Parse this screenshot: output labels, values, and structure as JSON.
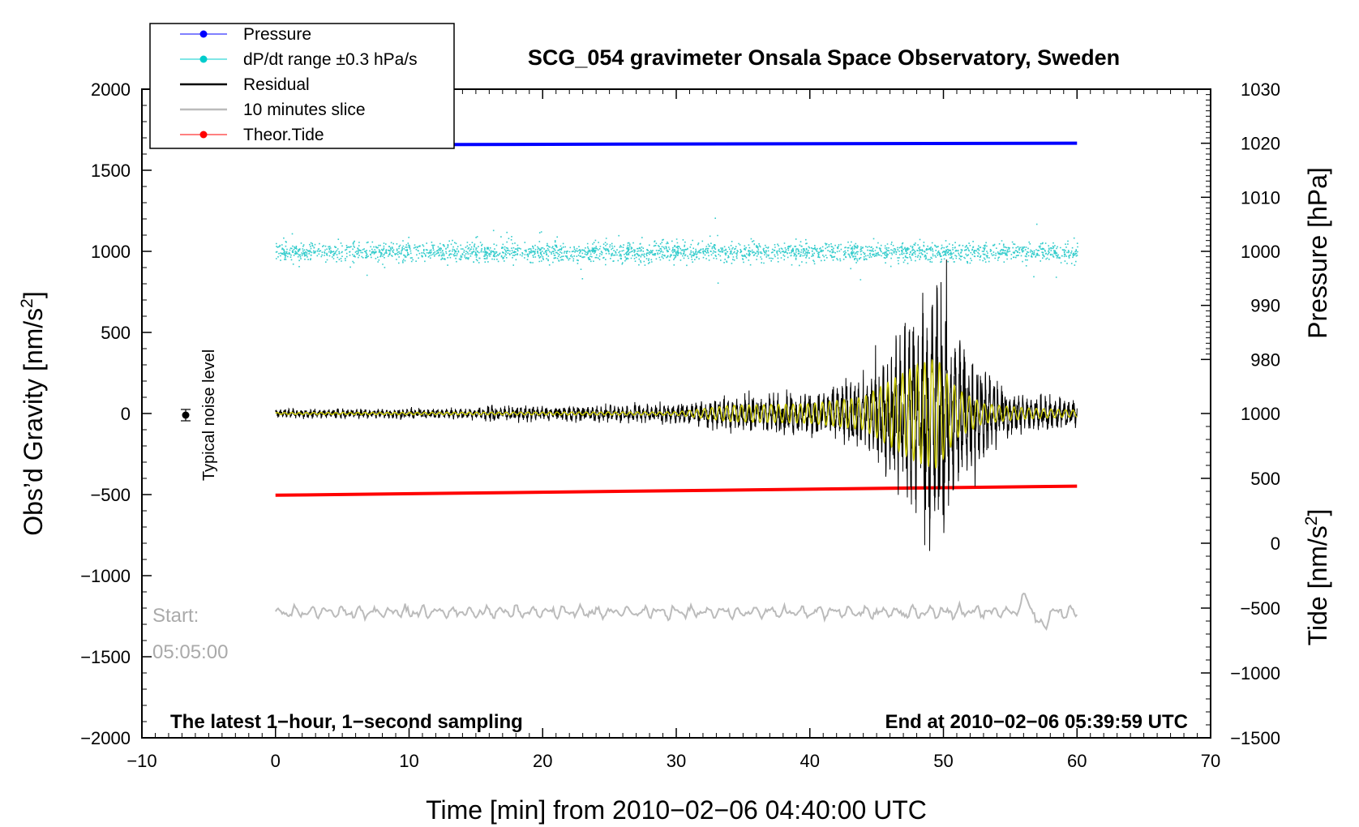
{
  "chart_data": {
    "type": "line",
    "title": "SCG_054 gravimeter Onsala Space Observatory, Sweden",
    "xlabel": "Time [min] from 2010−02−06 04:40:00 UTC",
    "xlim": [
      -10,
      70
    ],
    "x_ticks": [
      -10,
      0,
      10,
      20,
      30,
      40,
      50,
      60,
      70
    ],
    "x_tick_labels": [
      "−10",
      "0",
      "10",
      "20",
      "30",
      "40",
      "50",
      "60",
      "70"
    ],
    "left_axis": {
      "label": "Obs’d Gravity [nm/s2]",
      "label_main": "Obs’d Gravity [nm/s",
      "label_sup": "2",
      "label_end": "]",
      "ylim": [
        -2000,
        2000
      ],
      "ticks": [
        2000,
        1500,
        1000,
        500,
        0,
        -500,
        -1000,
        -1500,
        -2000
      ],
      "tick_labels": [
        "2000",
        "1500",
        "1000",
        "500",
        "0",
        "−500",
        "−1000",
        "−1500",
        "−2000"
      ]
    },
    "pressure_axis": {
      "label": "Pressure [hPa]",
      "ylim": [
        970,
        1030
      ],
      "ticks": [
        1030,
        1020,
        1010,
        1000,
        990,
        980
      ],
      "tick_labels": [
        "1030",
        "1020",
        "1010",
        "1000",
        "990",
        "980"
      ]
    },
    "tide_axis": {
      "label": "Tide [nm/s2]",
      "label_main": "Tide [nm/s",
      "label_sup": "2",
      "label_end": "]",
      "ylim": [
        -1500,
        1000
      ],
      "ticks": [
        1000,
        500,
        0,
        -500,
        -1000,
        -1500
      ],
      "tick_labels": [
        "1000",
        "500",
        "0",
        "−500",
        "−1000",
        "−1500"
      ]
    },
    "legend": [
      {
        "label": "Pressure",
        "color": "#0000ff",
        "marker": true
      },
      {
        "label": "dP/dt range ±0.3 hPa/s",
        "color": "#00cccc",
        "marker": true
      },
      {
        "label": "Residual",
        "color": "#000000",
        "marker": false
      },
      {
        "label": "10 minutes slice",
        "color": "#bbbbbb",
        "marker": false
      },
      {
        "label": "Theor.Tide",
        "color": "#ff0000",
        "marker": true
      }
    ],
    "series": [
      {
        "name": "Pressure",
        "color": "#0000ff",
        "axis": "pressure",
        "x": [
          0,
          60
        ],
        "values": [
          1019.7,
          1020.0
        ]
      },
      {
        "name": "dP/dt range ±0.3 hPa/s",
        "color": "#33cccc",
        "axis": "left",
        "center": 1000,
        "spread": 40,
        "x": [
          0,
          60
        ]
      },
      {
        "name": "Residual",
        "color": "#000000",
        "axis": "left",
        "envelope_x": [
          0,
          15,
          16.5,
          17,
          25,
          31,
          34,
          40,
          44,
          46,
          48,
          49.5,
          51,
          53,
          55,
          60
        ],
        "envelope_y": [
          25,
          30,
          50,
          40,
          45,
          60,
          100,
          120,
          200,
          350,
          620,
          780,
          500,
          260,
          130,
          80
        ]
      },
      {
        "name": "Filtered",
        "color": "#cccc00",
        "axis": "left",
        "envelope_x": [
          0,
          30,
          34,
          40,
          44,
          46,
          48,
          49.5,
          51,
          53,
          56,
          60
        ],
        "envelope_y": [
          6,
          10,
          50,
          60,
          100,
          200,
          300,
          340,
          150,
          60,
          35,
          20
        ]
      },
      {
        "name": "Theor.Tide",
        "color": "#ff0000",
        "axis": "tide",
        "x": [
          0,
          60
        ],
        "values": [
          370,
          440
        ]
      },
      {
        "name": "10 minutes slice",
        "color": "#bbbbbb",
        "axis": "left",
        "x": [
          0,
          60
        ],
        "center": -1225,
        "amplitude": 60
      }
    ],
    "noise_marker": {
      "x": -7,
      "y": 0,
      "label": "Typical noise level"
    }
  },
  "notes": {
    "start_label": "Start:",
    "start_time": "05:05:00",
    "sampling": "The latest 1−hour, 1−second sampling",
    "end": "End at 2010−02−06 05:39:59 UTC"
  }
}
